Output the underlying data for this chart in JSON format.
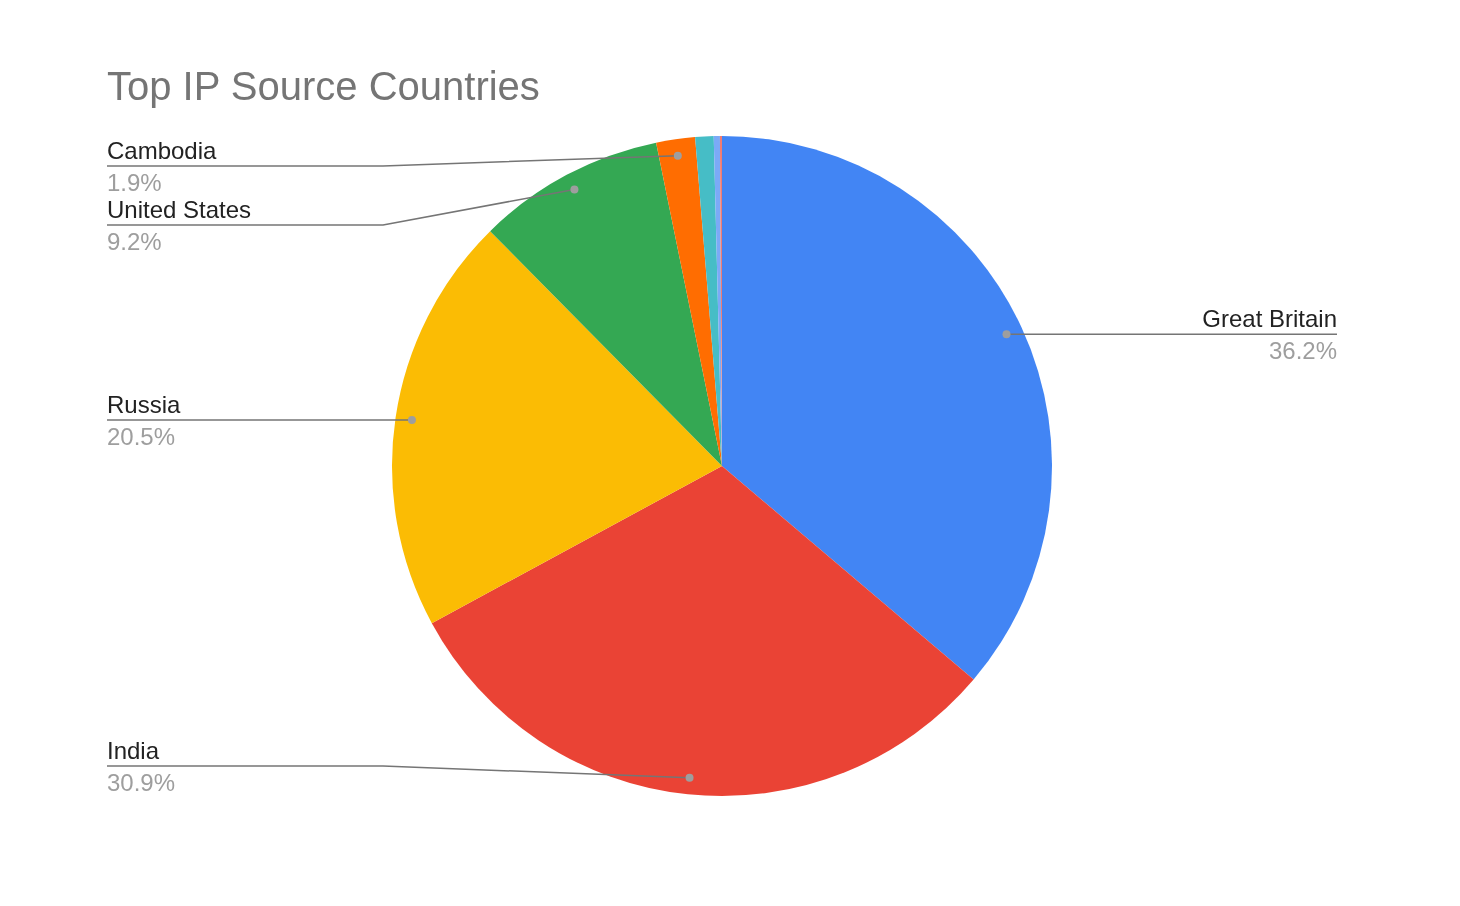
{
  "chart_data": {
    "type": "pie",
    "title": "Top IP Source Countries",
    "categories": [
      "Great Britain",
      "India",
      "Russia",
      "United States",
      "Cambodia",
      null,
      null,
      null
    ],
    "values": [
      36.2,
      30.9,
      20.5,
      9.2,
      1.9,
      0.9,
      0.3,
      0.1
    ],
    "colors": [
      "#4285f4",
      "#ea4335",
      "#fbbc04",
      "#34a853",
      "#ff6d01",
      "#46bdc6",
      "#7baaf7",
      "#f07b72"
    ],
    "value_labels": [
      "36.2%",
      "30.9%",
      "20.5%",
      "9.2%",
      "1.9%",
      null,
      null,
      null
    ],
    "legend": false
  }
}
